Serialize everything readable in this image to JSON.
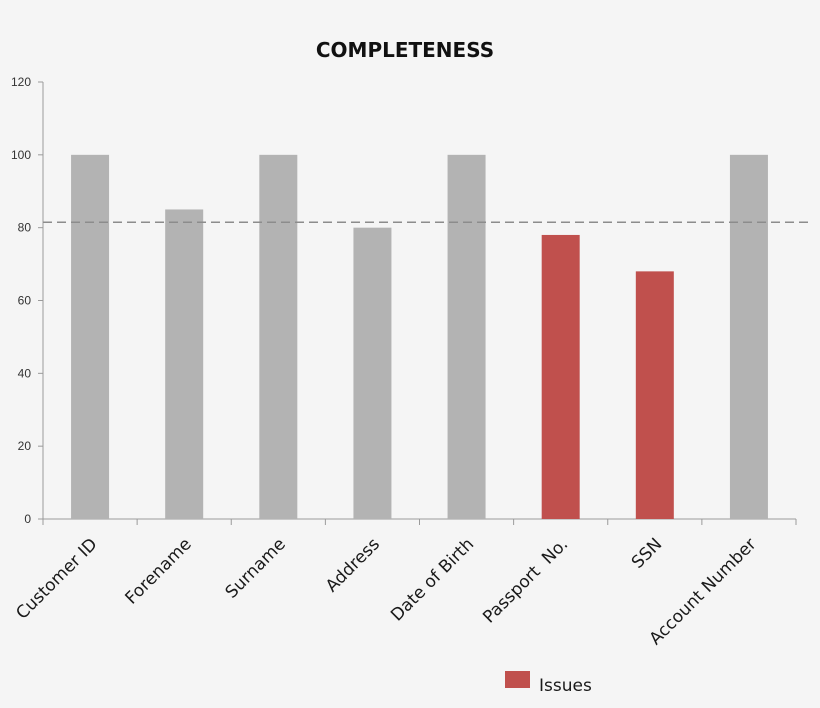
{
  "chart_data": {
    "type": "bar",
    "title": "COMPLETENESS",
    "categories": [
      "Customer ID",
      "Forename",
      "Surname",
      "Address",
      "Date of Birth",
      "Passport  No.",
      "SSN",
      "Account Number"
    ],
    "values": [
      100,
      85,
      100,
      80,
      100,
      78,
      68,
      100
    ],
    "issue_flags": [
      false,
      false,
      false,
      false,
      false,
      true,
      true,
      false
    ],
    "ylim": [
      0,
      120
    ],
    "yticks": [
      0,
      20,
      40,
      60,
      80,
      100,
      120
    ],
    "threshold": 81.5,
    "xlabel": "",
    "ylabel": "",
    "grid": false,
    "legend": {
      "placement": "bottom",
      "entries": [
        {
          "label": "Issues",
          "color": "#c0504d"
        }
      ]
    },
    "colors": {
      "normal_bar": "#b3b3b3",
      "issue_bar": "#c0504d",
      "threshold_line": "#8c8c8c",
      "axis": "#9a9a9a"
    }
  }
}
